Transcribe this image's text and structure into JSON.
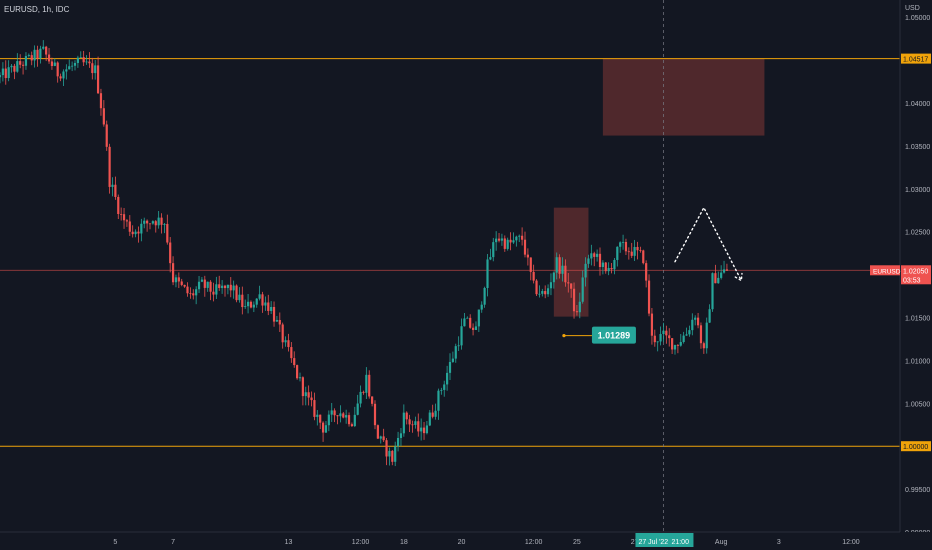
{
  "header": {
    "symbol_line": "EURUSD, 1h, IDC"
  },
  "axis": {
    "unit": "USD"
  },
  "colors": {
    "background": "#131722",
    "up": "#26a69a",
    "down": "#ef5350",
    "level_line": "#f0a30a",
    "zone_fill": "#5b2b2e",
    "projection": "#ffffff",
    "axis_text": "#b2b5be"
  },
  "chart_data": {
    "type": "candlestick",
    "symbol": "EURUSD",
    "timeframe": "1h",
    "source": "IDC",
    "y_ticks": [
      "1.05000",
      "1.04000",
      "1.03500",
      "1.03000",
      "1.02500",
      "1.01500",
      "1.01000",
      "1.00500",
      "0.99500",
      "0.99000"
    ],
    "y_tick_values": [
      1.05,
      1.04,
      1.035,
      1.03,
      1.025,
      1.015,
      1.01,
      1.005,
      0.995,
      0.99
    ],
    "ylim": [
      0.99,
      1.052
    ],
    "x_ticks": [
      "5",
      "7",
      "13",
      "12:00",
      "18",
      "20",
      "12:00",
      "25",
      "27",
      "Aug",
      "3",
      "12:00"
    ],
    "x_tick_times": [
      4.0,
      6.0,
      10.0,
      12.5,
      14.0,
      16.0,
      18.5,
      20.0,
      22.0,
      25.0,
      27.0,
      29.5
    ],
    "xlim": [
      0.0,
      31.2
    ],
    "levels": [
      {
        "value": 1.04517,
        "label": "1.04517"
      },
      {
        "value": 1.0,
        "label": "1.00000"
      }
    ],
    "current_price": {
      "label": "EURUSD",
      "value": "1.02050",
      "countdown": "03:53",
      "y": 1.0205
    },
    "crosshair_time_label": "27 Jul '22",
    "crosshair_time_extra": "21:00",
    "crosshair_time": 23.0,
    "highlight_low": {
      "label": "1.01289",
      "time": 19.55,
      "price": 1.01289
    },
    "zones": [
      {
        "t0": 19.2,
        "t1": 20.4,
        "p0": 1.0278,
        "p1": 1.0151
      },
      {
        "t0": 20.9,
        "t1": 26.5,
        "p0": 1.0452,
        "p1": 1.0362
      }
    ],
    "projection_path": [
      {
        "t": 23.4,
        "p": 1.0215
      },
      {
        "t": 24.4,
        "p": 1.0278
      },
      {
        "t": 25.7,
        "p": 1.0193
      }
    ],
    "price_anchors": [
      {
        "t": 0.0,
        "p": 1.043
      },
      {
        "t": 0.7,
        "p": 1.0445
      },
      {
        "t": 1.5,
        "p": 1.046
      },
      {
        "t": 2.0,
        "p": 1.0435
      },
      {
        "t": 2.8,
        "p": 1.0447
      },
      {
        "t": 3.3,
        "p": 1.0438
      },
      {
        "t": 3.6,
        "p": 1.0378
      },
      {
        "t": 3.8,
        "p": 1.031
      },
      {
        "t": 4.2,
        "p": 1.0268
      },
      {
        "t": 4.6,
        "p": 1.025
      },
      {
        "t": 5.3,
        "p": 1.0264
      },
      {
        "t": 5.7,
        "p": 1.0262
      },
      {
        "t": 6.0,
        "p": 1.0195
      },
      {
        "t": 6.6,
        "p": 1.0175
      },
      {
        "t": 7.0,
        "p": 1.0188
      },
      {
        "t": 7.4,
        "p": 1.018
      },
      {
        "t": 8.0,
        "p": 1.0185
      },
      {
        "t": 8.5,
        "p": 1.016
      },
      {
        "t": 9.0,
        "p": 1.0175
      },
      {
        "t": 9.4,
        "p": 1.016
      },
      {
        "t": 10.0,
        "p": 1.0108
      },
      {
        "t": 10.6,
        "p": 1.0058
      },
      {
        "t": 11.2,
        "p": 1.0022
      },
      {
        "t": 11.7,
        "p": 1.0042
      },
      {
        "t": 12.2,
        "p": 1.003
      },
      {
        "t": 12.7,
        "p": 1.008
      },
      {
        "t": 13.1,
        "p": 1.001
      },
      {
        "t": 13.6,
        "p": 0.9985
      },
      {
        "t": 14.0,
        "p": 1.0035
      },
      {
        "t": 14.6,
        "p": 1.0015
      },
      {
        "t": 15.0,
        "p": 1.004
      },
      {
        "t": 15.6,
        "p": 1.0095
      },
      {
        "t": 16.1,
        "p": 1.0145
      },
      {
        "t": 16.5,
        "p": 1.0135
      },
      {
        "t": 16.9,
        "p": 1.021
      },
      {
        "t": 17.2,
        "p": 1.0245
      },
      {
        "t": 17.6,
        "p": 1.0235
      },
      {
        "t": 18.1,
        "p": 1.0242
      },
      {
        "t": 18.5,
        "p": 1.0185
      },
      {
        "t": 18.9,
        "p": 1.0175
      },
      {
        "t": 19.3,
        "p": 1.0215
      },
      {
        "t": 19.7,
        "p": 1.019
      },
      {
        "t": 20.0,
        "p": 1.015
      },
      {
        "t": 20.3,
        "p": 1.0215
      },
      {
        "t": 20.7,
        "p": 1.0222
      },
      {
        "t": 21.0,
        "p": 1.02
      },
      {
        "t": 21.5,
        "p": 1.0232
      },
      {
        "t": 21.9,
        "p": 1.0228
      },
      {
        "t": 22.3,
        "p": 1.022
      },
      {
        "t": 22.6,
        "p": 1.0125
      },
      {
        "t": 23.0,
        "p": 1.0128
      },
      {
        "t": 23.4,
        "p": 1.0118
      },
      {
        "t": 23.8,
        "p": 1.0132
      },
      {
        "t": 24.1,
        "p": 1.0155
      },
      {
        "t": 24.4,
        "p": 1.0108
      },
      {
        "t": 24.7,
        "p": 1.0195
      },
      {
        "t": 25.2,
        "p": 1.0205
      }
    ]
  }
}
